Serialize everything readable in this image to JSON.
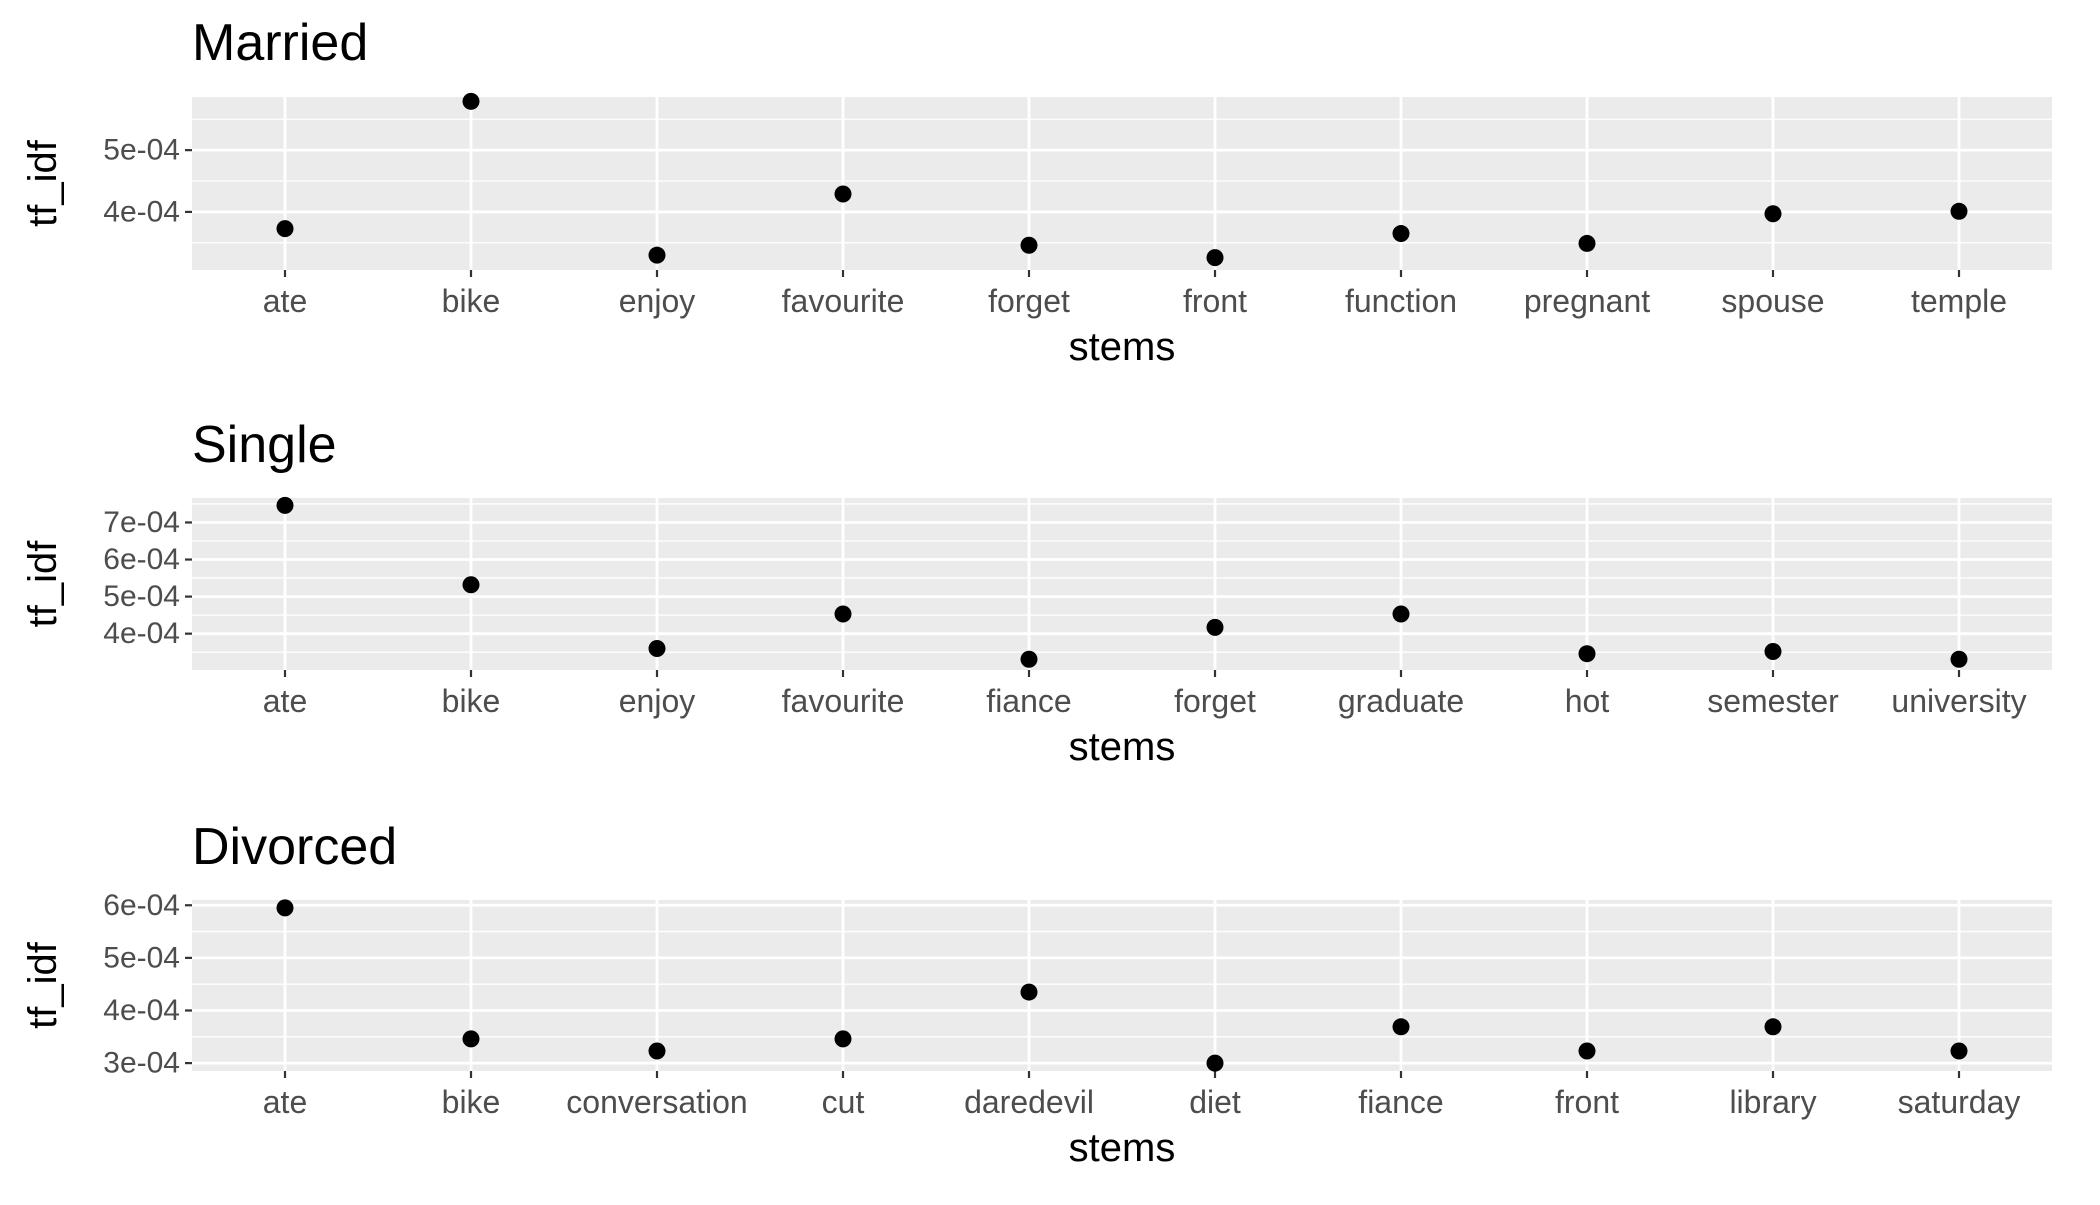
{
  "chart_data": [
    {
      "type": "scatter",
      "title": "Married",
      "xlabel": "stems",
      "ylabel": "tf_idf",
      "categories": [
        "ate",
        "bike",
        "enjoy",
        "favourite",
        "forget",
        "front",
        "function",
        "pregnant",
        "spouse",
        "temple"
      ],
      "values": [
        0.000373,
        0.000579,
        0.00033,
        0.000429,
        0.000346,
        0.000326,
        0.000365,
        0.000349,
        0.000397,
        0.000401
      ],
      "yticks": [
        0.0004,
        0.0005
      ],
      "ytick_labels": [
        "4e-04",
        "5e-04"
      ],
      "ylim": [
        0.000306,
        0.000586
      ],
      "grid": true
    },
    {
      "type": "scatter",
      "title": "Single",
      "xlabel": "stems",
      "ylabel": "tf_idf",
      "categories": [
        "ate",
        "bike",
        "enjoy",
        "favourite",
        "fiance",
        "forget",
        "graduate",
        "hot",
        "semester",
        "university"
      ],
      "values": [
        0.000746,
        0.000532,
        0.00036,
        0.000453,
        0.000331,
        0.000417,
        0.000453,
        0.000346,
        0.000352,
        0.000331
      ],
      "yticks": [
        0.0004,
        0.0005,
        0.0006,
        0.0007
      ],
      "ytick_labels": [
        "4e-04",
        "5e-04",
        "6e-04",
        "7e-04"
      ],
      "ylim": [
        0.000302,
        0.000766
      ],
      "grid": true
    },
    {
      "type": "scatter",
      "title": "Divorced",
      "xlabel": "stems",
      "ylabel": "tf_idf",
      "categories": [
        "ate",
        "bike",
        "conversation",
        "cut",
        "daredevil",
        "diet",
        "fiance",
        "front",
        "library",
        "saturday"
      ],
      "values": [
        0.000595,
        0.000346,
        0.000323,
        0.000346,
        0.000435,
        0.0003,
        0.000369,
        0.000323,
        0.000369,
        0.000323
      ],
      "yticks": [
        0.0003,
        0.0004,
        0.0005,
        0.0006
      ],
      "ytick_labels": [
        "3e-04",
        "4e-04",
        "5e-04",
        "6e-04"
      ],
      "ylim": [
        0.000285,
        0.00061
      ],
      "grid": true
    }
  ]
}
